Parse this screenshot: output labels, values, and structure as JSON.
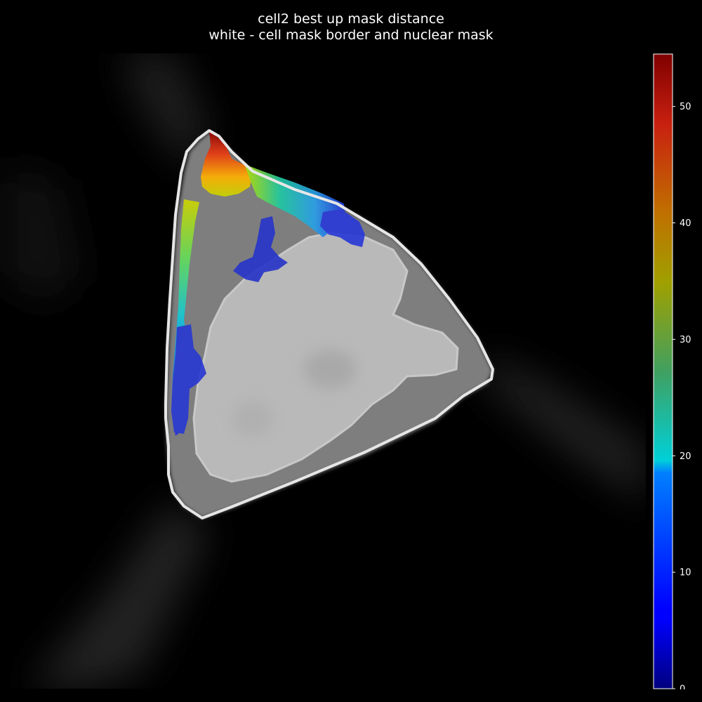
{
  "title": {
    "line1": "cell2 best up mask distance",
    "line2": "white - cell mask border and nuclear mask"
  },
  "colorbar": {
    "colormap": "jet",
    "min": 0,
    "max": 54.5,
    "ticks": [
      "0",
      "10",
      "20",
      "30",
      "40",
      "50"
    ]
  },
  "colors": {
    "background": "#000000",
    "mask_border": "#e8e8e8",
    "nucleus": "#bdbdbd",
    "cytoplasm": "#8a8a8a"
  }
}
